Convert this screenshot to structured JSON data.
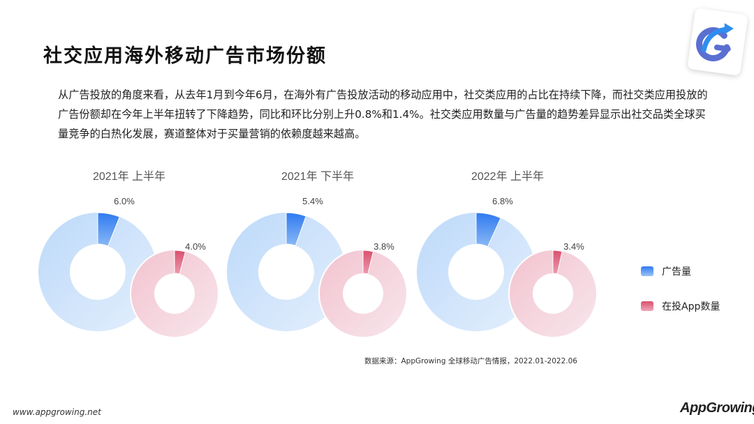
{
  "page": {
    "title": "社交应用海外移动广告市场份额",
    "intro": "从广告投放的角度来看，从去年1月到今年6月，在海外有广告投放活动的移动应用中，社交类应用的占比在持续下降，而社交类应用投放的广告份额却在今年上半年扭转了下降趋势，同比和环比分别上升0.8%和1.4%。社交类应用数量与广告量的趋势差异显示出社交品类全球买量竞争的白热化发展，赛道整体对于买量营销的依赖度越来越高。",
    "source": "数据来源：AppGrowing 全球移动广告情报，2022.01-2022.06",
    "site": "www.appgrowing.net",
    "logo": "AppGrowing"
  },
  "legend": {
    "ad": "广告量",
    "app": "在投App数量"
  },
  "chart_data": {
    "type": "pie",
    "variant": "donut",
    "groups": [
      {
        "period": "2021年 上半年",
        "ad_share": 6.0,
        "app_share": 4.0,
        "ad_label": "6.0%",
        "app_label": "4.0%"
      },
      {
        "period": "2021年 下半年",
        "ad_share": 5.4,
        "app_share": 3.8,
        "ad_label": "5.4%",
        "app_label": "3.8%"
      },
      {
        "period": "2022年 上半年",
        "ad_share": 6.8,
        "app_share": 3.4,
        "ad_label": "6.8%",
        "app_label": "3.4%"
      }
    ],
    "series": [
      {
        "name": "广告量",
        "values": [
          6.0,
          5.4,
          6.8
        ]
      },
      {
        "name": "在投App数量",
        "values": [
          4.0,
          3.8,
          3.4
        ]
      }
    ],
    "colors": {
      "ad_highlight": "#3b82f0",
      "ad_rest": "#cfe3fb",
      "app_highlight": "#d9506d",
      "app_rest": "#f5d3dc"
    }
  }
}
